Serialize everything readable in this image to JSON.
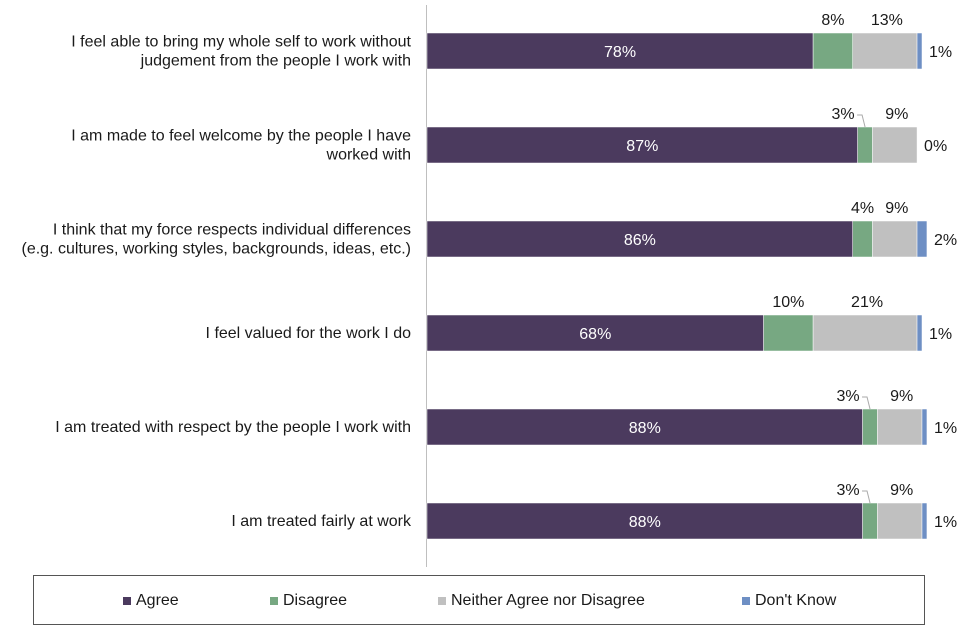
{
  "chart_data": {
    "type": "bar",
    "orientation": "horizontal",
    "stacked": true,
    "categories": [
      [
        "I feel able to bring my whole self to work without",
        "judgement from the people I work with"
      ],
      [
        "I am made to feel welcome by the people I have",
        "worked with"
      ],
      [
        "I think that my force respects individual differences",
        "(e.g. cultures, working styles, backgrounds, ideas, etc.)"
      ],
      [
        "I feel valued for the work I do"
      ],
      [
        "I am treated with respect by the people I work with"
      ],
      [
        "I am treated fairly at work"
      ]
    ],
    "series": [
      {
        "name": "Agree",
        "color": "#4b3a5e",
        "values": [
          78,
          87,
          86,
          68,
          88,
          88
        ]
      },
      {
        "name": "Disagree",
        "color": "#77a882",
        "values": [
          8,
          3,
          4,
          10,
          3,
          3
        ]
      },
      {
        "name": "Neither Agree nor Disagree",
        "color": "#c0c0c0",
        "values": [
          13,
          9,
          9,
          21,
          9,
          9
        ]
      },
      {
        "name": "Don't Know",
        "color": "#6e8fc4",
        "values": [
          1,
          0,
          2,
          1,
          1,
          1
        ]
      }
    ],
    "xlim": [
      0,
      100
    ],
    "title": "",
    "xlabel": "",
    "ylabel": "",
    "grid": false,
    "legend_position": "bottom"
  },
  "legend": {
    "agree": "Agree",
    "disagree": "Disagree",
    "neither": "Neither Agree nor Disagree",
    "dont_know": "Don't Know"
  }
}
